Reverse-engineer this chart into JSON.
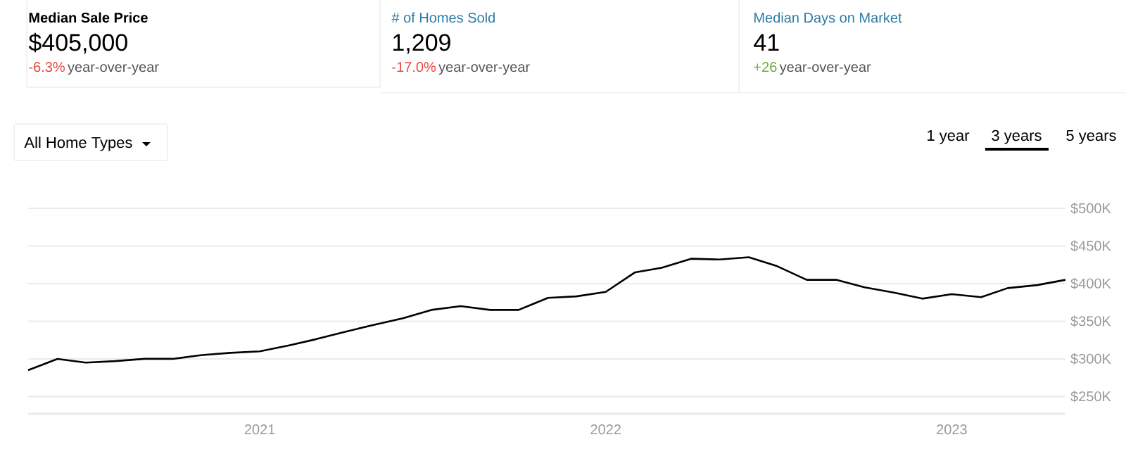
{
  "chart_data": {
    "type": "line",
    "title": "Median Sale Price",
    "subtitle": "$405,000",
    "annotations": [
      "-6.3%",
      "year-over-year",
      "# of Homes Sold",
      "1,209",
      "-17.0%",
      "year-over-year",
      "Median Days on Market",
      "41",
      "+26",
      "year-over-year",
      "All Home Types",
      "1 year",
      "3 years",
      "5 years"
    ],
    "x": [
      "2020-05",
      "2020-06",
      "2020-07",
      "2020-08",
      "2020-09",
      "2020-10",
      "2020-11",
      "2020-12",
      "2021-01",
      "2021-02",
      "2021-03",
      "2021-04",
      "2021-05",
      "2021-06",
      "2021-07",
      "2021-08",
      "2021-09",
      "2021-10",
      "2021-11",
      "2021-12",
      "2022-01",
      "2022-02",
      "2022-03",
      "2022-04",
      "2022-05",
      "2022-06",
      "2022-07",
      "2022-08",
      "2022-09",
      "2022-10",
      "2022-11",
      "2022-12",
      "2023-01",
      "2023-02",
      "2023-03",
      "2023-04",
      "2023-05"
    ],
    "series": [
      {
        "color": "#000000",
        "values": [
          285,
          300,
          295,
          297,
          300,
          300,
          305,
          308,
          310,
          318,
          326,
          336,
          345,
          354,
          365,
          370,
          365,
          365,
          381,
          383,
          389,
          415,
          421,
          433,
          432,
          435,
          423,
          405,
          405,
          395,
          388,
          380,
          386,
          382,
          394,
          398,
          405
        ]
      }
    ],
    "xlim": [
      "2020-05",
      "2023-05"
    ],
    "xticks": [
      {
        "value": "2021-01",
        "label": "2021"
      },
      {
        "value": "2022-01",
        "label": "2022"
      },
      {
        "value": "2023-01",
        "label": "2023"
      }
    ],
    "ylim": [
      227,
      500
    ],
    "yticks": [
      {
        "value": 250,
        "label": "$250K"
      },
      {
        "value": 300,
        "label": "$300K"
      },
      {
        "value": 350,
        "label": "$350K"
      },
      {
        "value": 400,
        "label": "$400K"
      },
      {
        "value": 450,
        "label": "$450K"
      },
      {
        "value": 500,
        "label": "$500K"
      }
    ],
    "grid": "y",
    "marker": "none",
    "line_style": "solid"
  }
}
